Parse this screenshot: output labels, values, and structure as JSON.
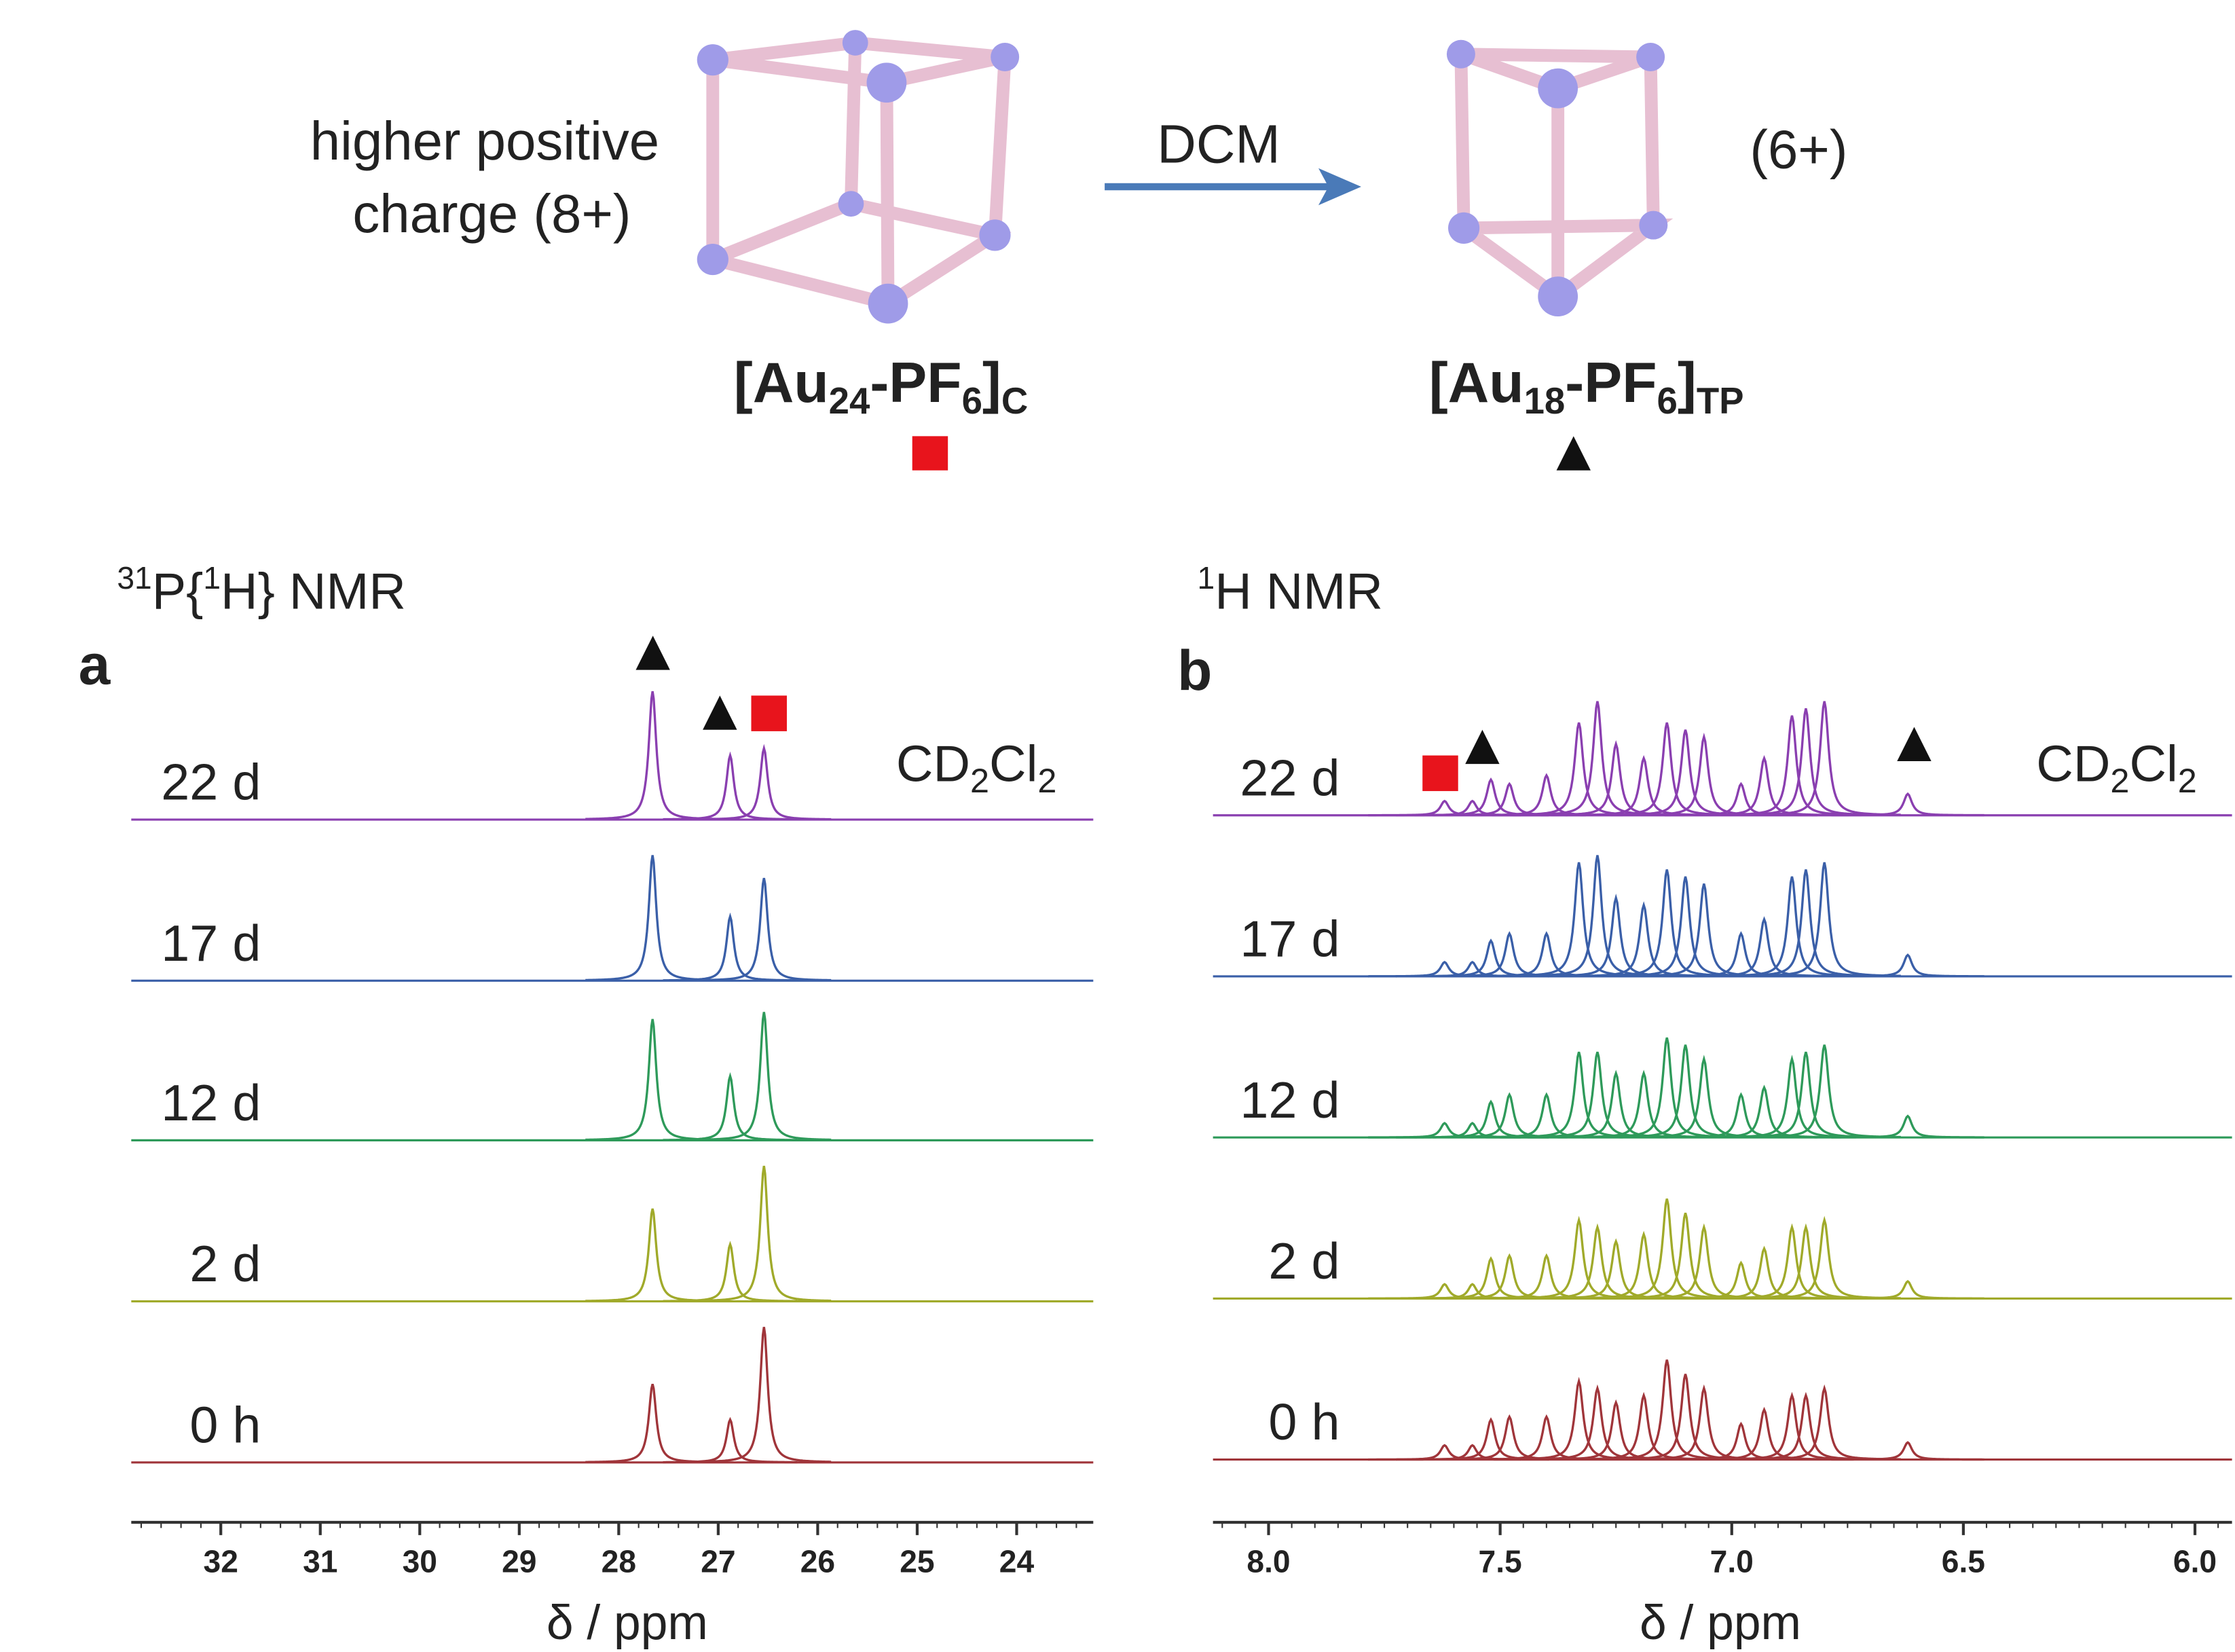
{
  "scheme": {
    "left_text": [
      "higher positive",
      "charge (8+)"
    ],
    "arrow_label": "DCM",
    "right_text": "(6+)",
    "left_formula": [
      "[Au",
      "24",
      "-PF",
      "6",
      "]",
      "C"
    ],
    "right_formula": [
      "[Au",
      "18",
      "-PF",
      "6",
      "]",
      "TP"
    ]
  },
  "chart_data": [
    {
      "type": "line",
      "panel": "a",
      "title": [
        "31",
        "P{",
        "1",
        "H} NMR"
      ],
      "solvent": [
        "CD",
        "2",
        "Cl",
        "2"
      ],
      "xlabel": "δ / ppm",
      "xlim": [
        32.9,
        23.23
      ],
      "xticks": [
        32,
        31,
        30,
        29,
        28,
        27,
        26,
        25,
        24
      ],
      "x": [
        27.66,
        26.88,
        26.54
      ],
      "series": [
        {
          "name": "22 d",
          "color": "#8a3fb0",
          "values": [
            90,
            45,
            50
          ]
        },
        {
          "name": "17 d",
          "color": "#3a5fa8",
          "values": [
            88,
            45,
            72
          ]
        },
        {
          "name": "12 d",
          "color": "#2e9a5a",
          "values": [
            85,
            45,
            90
          ]
        },
        {
          "name": "2 d",
          "color": "#a0aa2a",
          "values": [
            65,
            40,
            95
          ]
        },
        {
          "name": "0 h",
          "color": "#a0353a",
          "values": [
            55,
            30,
            95
          ]
        }
      ]
    },
    {
      "type": "line",
      "panel": "b",
      "title": [
        "1",
        "H NMR"
      ],
      "solvent": [
        "CD",
        "2",
        "Cl",
        "2"
      ],
      "xlabel": "δ / ppm",
      "xlim": [
        8.12,
        5.92
      ],
      "xticks": [
        {
          "value": 8,
          "label": "8.0"
        },
        7.5,
        {
          "value": 7,
          "label": "7.0"
        },
        6.5,
        {
          "value": 6,
          "label": "6.0"
        }
      ],
      "x": [
        7.62,
        7.56,
        7.52,
        7.48,
        7.4,
        7.33,
        7.29,
        7.25,
        7.19,
        7.14,
        7.1,
        7.06,
        6.98,
        6.93,
        6.87,
        6.84,
        6.8,
        6.62
      ],
      "series": [
        {
          "name": "22 d",
          "color": "#8a3fb0",
          "values": [
            10,
            10,
            25,
            22,
            28,
            65,
            80,
            50,
            40,
            65,
            60,
            55,
            22,
            40,
            70,
            75,
            80,
            15
          ]
        },
        {
          "name": "17 d",
          "color": "#3a5fa8",
          "values": [
            10,
            10,
            25,
            30,
            30,
            80,
            85,
            55,
            50,
            75,
            70,
            65,
            30,
            40,
            70,
            75,
            80,
            15
          ]
        },
        {
          "name": "12 d",
          "color": "#2e9a5a",
          "values": [
            10,
            10,
            25,
            30,
            30,
            60,
            60,
            45,
            45,
            70,
            65,
            55,
            30,
            35,
            55,
            60,
            65,
            15
          ]
        },
        {
          "name": "2 d",
          "color": "#a0aa2a",
          "values": [
            10,
            10,
            28,
            30,
            30,
            55,
            50,
            40,
            45,
            70,
            60,
            50,
            25,
            35,
            50,
            50,
            55,
            12
          ]
        },
        {
          "name": "0 h",
          "color": "#a0353a",
          "values": [
            10,
            10,
            28,
            30,
            30,
            55,
            50,
            40,
            45,
            70,
            60,
            50,
            25,
            35,
            45,
            45,
            50,
            12
          ]
        }
      ]
    }
  ]
}
